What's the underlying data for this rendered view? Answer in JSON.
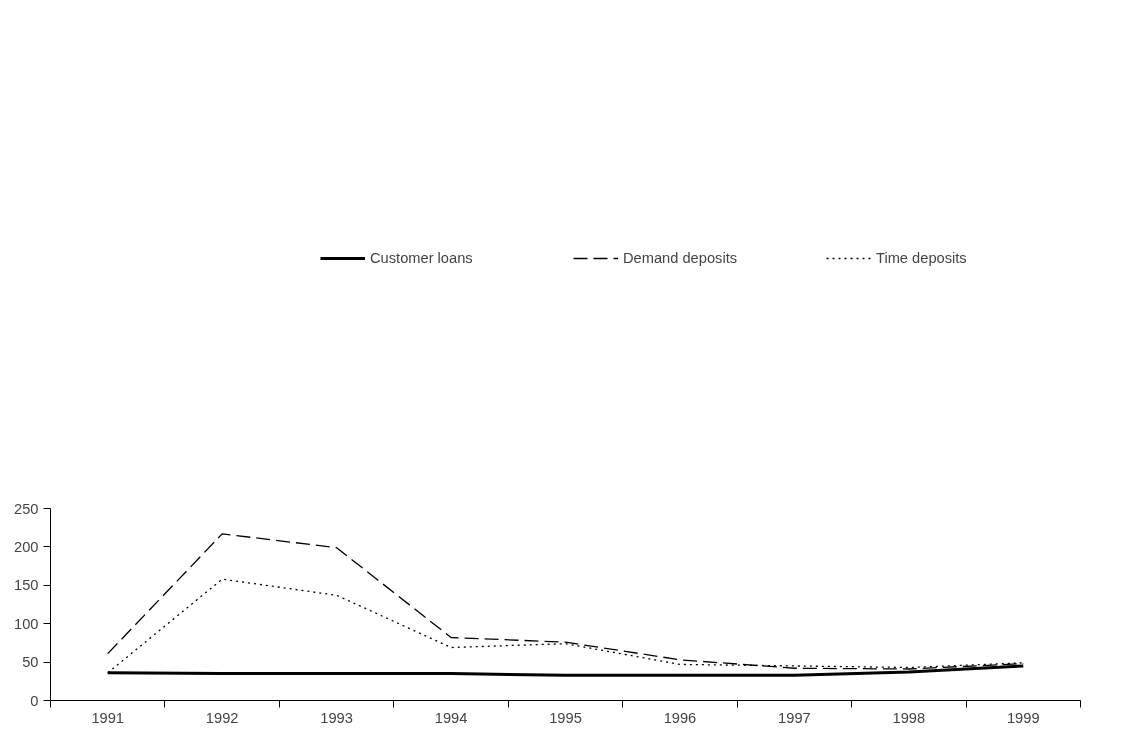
{
  "chart_data": {
    "type": "line",
    "categories": [
      "1991",
      "1992",
      "1993",
      "1994",
      "1995",
      "1996",
      "1997",
      "1998",
      "1999"
    ],
    "ylim": [
      0,
      250
    ],
    "yticks": [
      0,
      50,
      100,
      150,
      200,
      250
    ],
    "grid": false,
    "legend": "top",
    "marker": "none",
    "series": [
      {
        "name": "Customer loans",
        "color": "#000000",
        "line_style": "solid",
        "values": [
          36,
          35,
          35,
          35,
          33,
          33,
          33,
          37,
          45
        ]
      },
      {
        "name": "Demand deposits",
        "color": "#000000",
        "line_style": "dashed",
        "values": [
          61,
          217,
          199,
          82,
          76,
          53,
          42,
          41,
          48
        ]
      },
      {
        "name": "Time deposits",
        "color": "#000000",
        "line_style": "dotted",
        "values": [
          36,
          158,
          137,
          69,
          74,
          47,
          45,
          43,
          49
        ]
      }
    ]
  }
}
